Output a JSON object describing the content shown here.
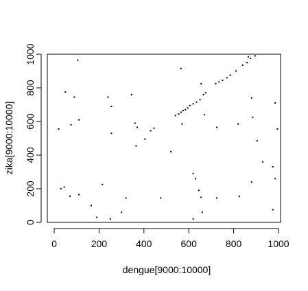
{
  "chart_data": {
    "type": "scatter",
    "title": "",
    "xlabel": "dengue[9000:10000]",
    "ylabel": "zika[9000:10000]",
    "xlim": [
      0,
      1000
    ],
    "ylim": [
      0,
      1000
    ],
    "xticks": [
      0,
      200,
      400,
      600,
      800,
      1000
    ],
    "yticks": [
      0,
      200,
      400,
      600,
      800,
      1000
    ],
    "grid": false,
    "marker_color": "#000000",
    "points": [
      [
        105,
        965
      ],
      [
        565,
        915
      ],
      [
        865,
        985
      ],
      [
        895,
        990
      ],
      [
        810,
        900
      ],
      [
        840,
        935
      ],
      [
        860,
        950
      ],
      [
        875,
        975
      ],
      [
        50,
        775
      ],
      [
        90,
        745
      ],
      [
        240,
        745
      ],
      [
        345,
        760
      ],
      [
        880,
        740
      ],
      [
        985,
        710
      ],
      [
        255,
        690
      ],
      [
        540,
        635
      ],
      [
        555,
        645
      ],
      [
        565,
        655
      ],
      [
        575,
        665
      ],
      [
        585,
        670
      ],
      [
        595,
        680
      ],
      [
        605,
        695
      ],
      [
        620,
        705
      ],
      [
        635,
        715
      ],
      [
        650,
        730
      ],
      [
        665,
        760
      ],
      [
        675,
        770
      ],
      [
        720,
        825
      ],
      [
        735,
        835
      ],
      [
        750,
        845
      ],
      [
        770,
        860
      ],
      [
        785,
        875
      ],
      [
        655,
        825
      ],
      [
        110,
        610
      ],
      [
        20,
        555
      ],
      [
        75,
        580
      ],
      [
        255,
        530
      ],
      [
        360,
        590
      ],
      [
        370,
        565
      ],
      [
        430,
        545
      ],
      [
        445,
        560
      ],
      [
        570,
        585
      ],
      [
        670,
        640
      ],
      [
        725,
        565
      ],
      [
        820,
        585
      ],
      [
        885,
        625
      ],
      [
        995,
        555
      ],
      [
        405,
        495
      ],
      [
        365,
        455
      ],
      [
        905,
        485
      ],
      [
        520,
        420
      ],
      [
        930,
        360
      ],
      [
        975,
        330
      ],
      [
        985,
        260
      ],
      [
        880,
        240
      ],
      [
        620,
        290
      ],
      [
        630,
        260
      ],
      [
        645,
        190
      ],
      [
        655,
        150
      ],
      [
        725,
        145
      ],
      [
        825,
        155
      ],
      [
        30,
        200
      ],
      [
        45,
        210
      ],
      [
        70,
        155
      ],
      [
        110,
        165
      ],
      [
        215,
        225
      ],
      [
        165,
        100
      ],
      [
        190,
        30
      ],
      [
        250,
        20
      ],
      [
        300,
        60
      ],
      [
        320,
        145
      ],
      [
        475,
        145
      ],
      [
        620,
        20
      ],
      [
        660,
        60
      ],
      [
        975,
        75
      ]
    ]
  }
}
